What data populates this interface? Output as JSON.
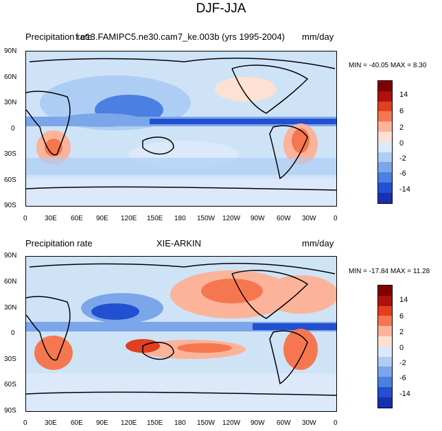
{
  "main_title": "DJF-JJA",
  "chart_data": [
    {
      "type": "heatmap",
      "left_title": "Precipitation rate",
      "center_title": "f.e13.FAMIPC5.ne30.cam7_ke.003b (yrs 1995-2004)",
      "units": "mm/day",
      "stats": "MIN = -40.05 MAX =  8.30",
      "x_ticks": [
        "0",
        "30E",
        "60E",
        "90E",
        "120E",
        "150E",
        "180",
        "150W",
        "120W",
        "90W",
        "60W",
        "30W",
        "0"
      ],
      "y_ticks": [
        "90N",
        "60N",
        "30N",
        "0",
        "30S",
        "60S",
        "90S"
      ],
      "colorbar_levels": [
        "14",
        "6",
        "2",
        "0",
        "-2",
        "-6",
        "-14"
      ]
    },
    {
      "type": "heatmap",
      "left_title": "Precipitation rate",
      "center_title": "XIE-ARKIN",
      "units": "mm/day",
      "stats": "MIN = -17.84 MAX =  11.28",
      "x_ticks": [
        "0",
        "30E",
        "60E",
        "90E",
        "120E",
        "150E",
        "180",
        "150W",
        "120W",
        "90W",
        "60W",
        "30W",
        "0"
      ],
      "y_ticks": [
        "90N",
        "60N",
        "30N",
        "0",
        "30S",
        "60S",
        "90S"
      ],
      "colorbar_levels": [
        "14",
        "6",
        "2",
        "0",
        "-2",
        "-6",
        "-14"
      ]
    }
  ],
  "colors": [
    "#800000",
    "#b01010",
    "#e04020",
    "#f5774f",
    "#fbb39a",
    "#fde1d2",
    "#dbe9fb",
    "#aecdf4",
    "#7ba7ea",
    "#4c7fe2",
    "#2250d0",
    "#1830b0",
    "#0a1a7a"
  ]
}
